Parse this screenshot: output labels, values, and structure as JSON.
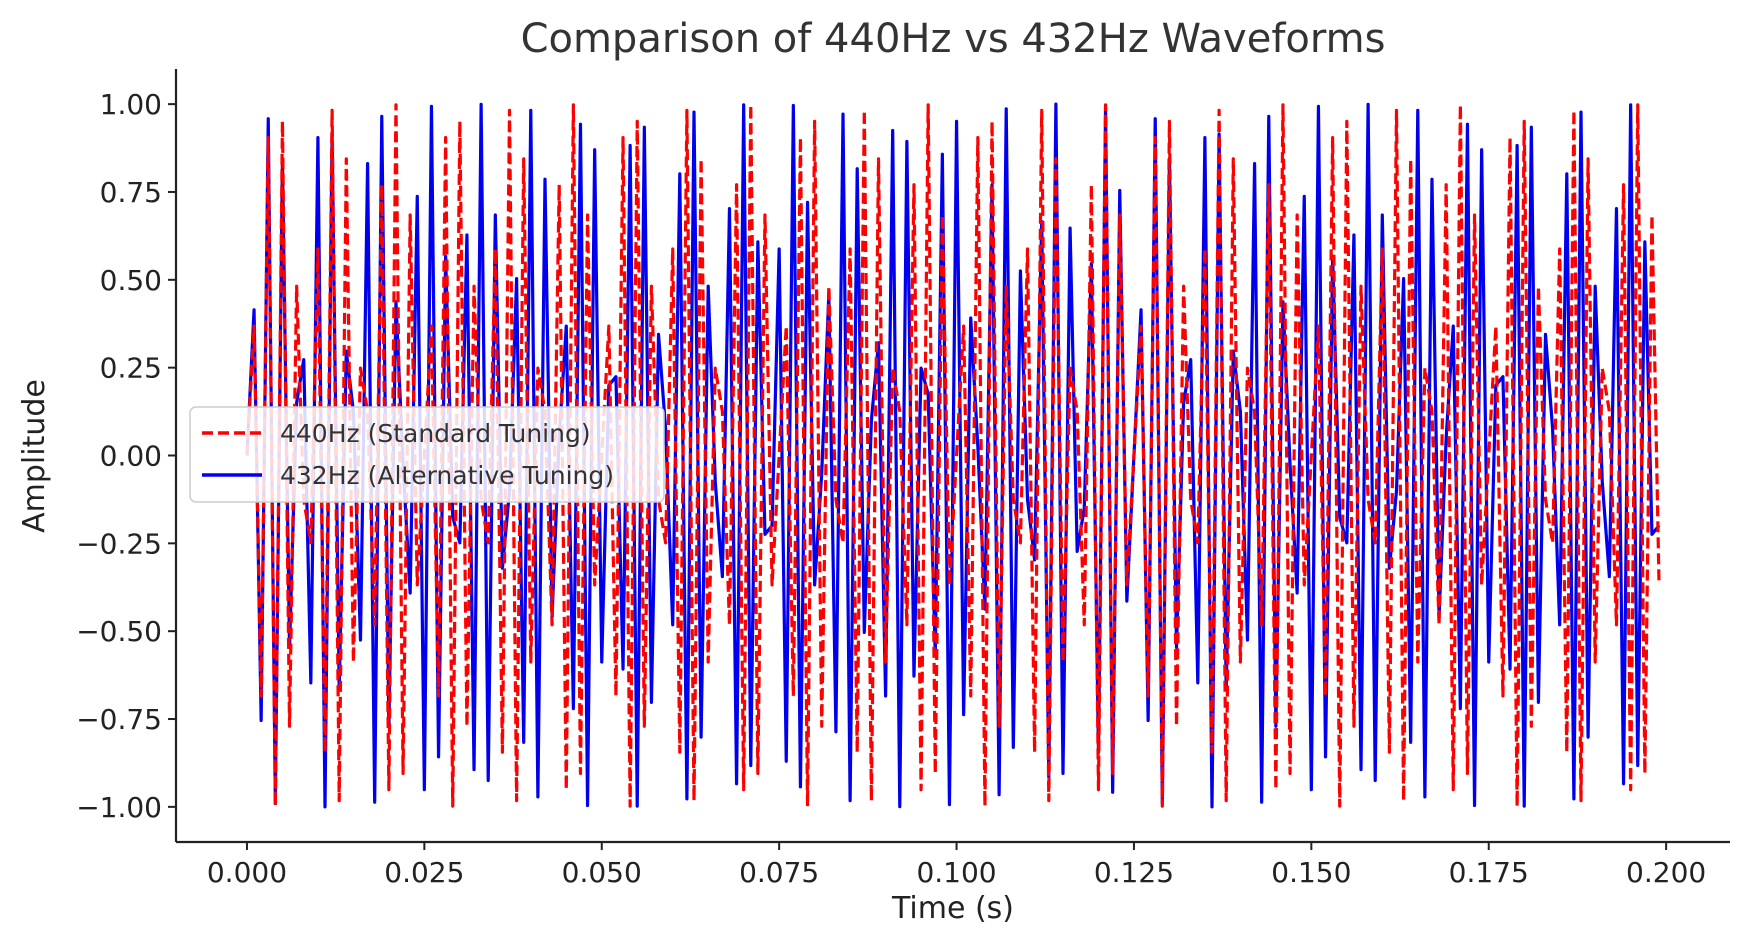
{
  "chart_data": {
    "type": "line",
    "title": "Comparison of 440Hz vs 432Hz Waveforms",
    "xlabel": "Time (s)",
    "ylabel": "Amplitude",
    "xlim": [
      -0.01,
      0.209
    ],
    "ylim": [
      -1.1,
      1.1
    ],
    "x_ticks": [
      0.0,
      0.025,
      0.05,
      0.075,
      0.1,
      0.125,
      0.15,
      0.175,
      0.2
    ],
    "x_tick_labels": [
      "0.000",
      "0.025",
      "0.050",
      "0.075",
      "0.100",
      "0.125",
      "0.150",
      "0.175",
      "0.200"
    ],
    "y_ticks": [
      1.0,
      0.75,
      0.5,
      0.25,
      0.0,
      -0.25,
      -0.5,
      -0.75,
      -1.0
    ],
    "y_tick_labels": [
      "1.00",
      "0.75",
      "0.50",
      "0.25",
      "0.00",
      "−0.25",
      "−0.50",
      "−0.75",
      "−1.00"
    ],
    "grid": false,
    "legend_position": "center-left",
    "x_range": [
      0.0,
      0.199
    ],
    "sample_step": 0.001,
    "series": [
      {
        "name": "440Hz (Standard Tuning)",
        "frequency_hz": 440,
        "function": "sin",
        "color": "#ff0000",
        "line_style": "dashed"
      },
      {
        "name": "432Hz (Alternative Tuning)",
        "frequency_hz": 432,
        "function": "sin",
        "color": "#0000ee",
        "line_style": "solid"
      }
    ]
  }
}
